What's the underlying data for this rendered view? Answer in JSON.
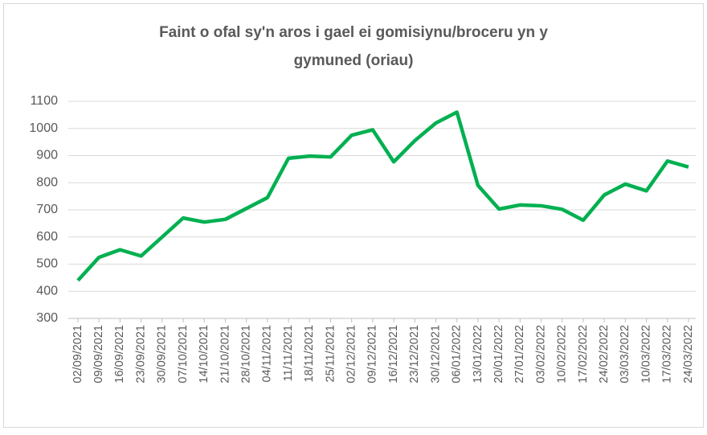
{
  "chart_data": {
    "type": "line",
    "title_lines": [
      "Faint o ofal sy'n aros i gael ei gomisiynu/broceru yn y",
      "gymuned (oriau)"
    ],
    "categories": [
      "02/09/2021",
      "09/09/2021",
      "16/09/2021",
      "23/09/2021",
      "30/09/2021",
      "07/10/2021",
      "14/10/2021",
      "21/10/2021",
      "28/10/2021",
      "04/11/2021",
      "11/11/2021",
      "18/11/2021",
      "25/11/2021",
      "02/12/2021",
      "09/12/2021",
      "16/12/2021",
      "23/12/2021",
      "30/12/2021",
      "06/01/2022",
      "13/01/2022",
      "20/01/2022",
      "27/01/2022",
      "03/02/2022",
      "10/02/2022",
      "17/02/2022",
      "24/02/2022",
      "03/03/2022",
      "10/03/2022",
      "17/03/2022",
      "24/03/2022"
    ],
    "series": [
      {
        "color": "#00b050",
        "values": [
          440,
          525,
          553,
          530,
          600,
          670,
          655,
          665,
          705,
          745,
          890,
          898,
          895,
          975,
          995,
          877,
          955,
          1020,
          1060,
          790,
          703,
          718,
          715,
          702,
          662,
          755,
          795,
          770,
          880,
          858
        ]
      }
    ],
    "ylim": [
      300,
      1100
    ],
    "yticks": [
      300,
      400,
      500,
      600,
      700,
      800,
      900,
      1000,
      1100
    ],
    "grid": true
  }
}
